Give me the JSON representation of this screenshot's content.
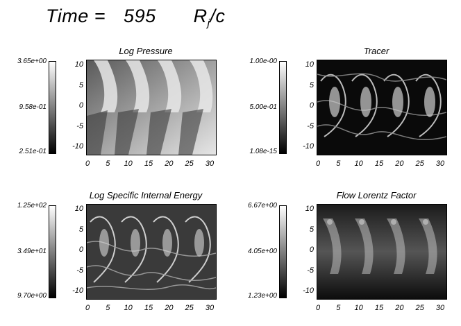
{
  "header": {
    "label": "Time =",
    "value": "595",
    "unit_main": "R",
    "unit_sub": "j",
    "unit_tail": "/c"
  },
  "panels": [
    {
      "title": "Log Pressure",
      "colorbar": {
        "max": "3.65e+00",
        "mid": "9.58e-01",
        "min": "2.51e-01"
      }
    },
    {
      "title": "Tracer",
      "colorbar": {
        "max": "1.00e-00",
        "mid": "5.00e-01",
        "min": "1.08e-15"
      }
    },
    {
      "title": "Log Specific Internal Energy",
      "colorbar": {
        "max": "1.25e+02",
        "mid": "3.49e+01",
        "min": "9.70e+00"
      }
    },
    {
      "title": "Flow Lorentz Factor",
      "colorbar": {
        "max": "6.67e+00",
        "mid": "4.05e+00",
        "min": "1.23e+00"
      }
    }
  ],
  "axes": {
    "y_ticks": [
      "10",
      "5",
      "0",
      "-5",
      "-10"
    ],
    "x_ticks": [
      "0",
      "5",
      "10",
      "15",
      "20",
      "25",
      "30"
    ]
  },
  "colors": {
    "background": "#ffffff",
    "ink": "#000000"
  }
}
